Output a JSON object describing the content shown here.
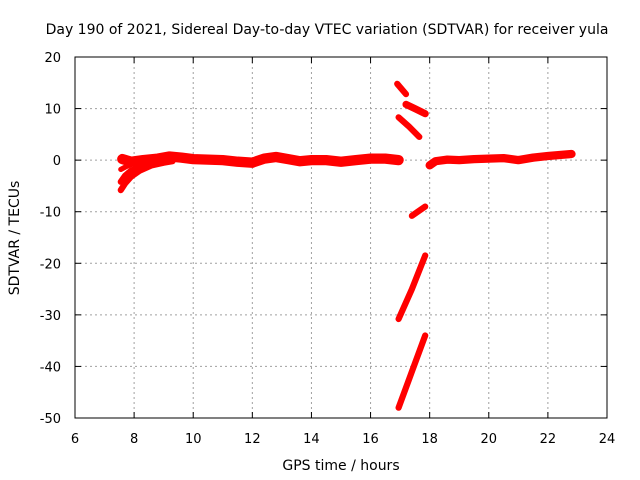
{
  "chart_data": {
    "type": "scatter",
    "title": "Day 190 of 2021, Sidereal Day-to-day VTEC variation (SDTVAR) for receiver yula",
    "xlabel": "GPS time / hours",
    "ylabel": "SDTVAR / TECUs",
    "xlim": [
      6,
      24
    ],
    "ylim": [
      -50,
      20
    ],
    "xticks": [
      6,
      8,
      10,
      12,
      14,
      16,
      18,
      20,
      22,
      24
    ],
    "yticks": [
      -50,
      -40,
      -30,
      -20,
      -10,
      0,
      10,
      20
    ],
    "grid": true,
    "legend": "none",
    "color": "#ff0000",
    "series": [
      {
        "name": "track-main-left",
        "thickness": 2.0,
        "points": [
          [
            7.6,
            0.2
          ],
          [
            7.9,
            -0.3
          ],
          [
            8.3,
            0.0
          ],
          [
            8.8,
            0.3
          ],
          [
            9.2,
            0.7
          ],
          [
            9.6,
            0.5
          ],
          [
            10.0,
            0.2
          ],
          [
            10.5,
            0.1
          ],
          [
            11.0,
            0.0
          ],
          [
            11.5,
            -0.3
          ],
          [
            12.0,
            -0.5
          ],
          [
            12.4,
            0.3
          ],
          [
            12.8,
            0.6
          ],
          [
            13.2,
            0.2
          ],
          [
            13.6,
            -0.2
          ],
          [
            14.0,
            0.0
          ],
          [
            14.5,
            0.0
          ],
          [
            15.0,
            -0.3
          ],
          [
            15.5,
            0.0
          ],
          [
            16.0,
            0.3
          ],
          [
            16.5,
            0.3
          ],
          [
            16.95,
            0.0
          ]
        ]
      },
      {
        "name": "track-decay-a",
        "thickness": 1.2,
        "points": [
          [
            7.55,
            -5.8
          ],
          [
            7.7,
            -4.5
          ],
          [
            7.9,
            -3.2
          ],
          [
            8.2,
            -2.0
          ],
          [
            8.6,
            -1.0
          ],
          [
            9.0,
            -0.5
          ],
          [
            9.3,
            -0.2
          ]
        ]
      },
      {
        "name": "track-decay-b",
        "thickness": 1.2,
        "points": [
          [
            7.55,
            -4.2
          ],
          [
            7.7,
            -3.0
          ],
          [
            7.9,
            -2.0
          ],
          [
            8.2,
            -1.3
          ],
          [
            8.6,
            -0.7
          ],
          [
            9.0,
            -0.3
          ]
        ]
      },
      {
        "name": "track-decay-c",
        "thickness": 1.0,
        "points": [
          [
            7.55,
            -1.8
          ],
          [
            7.75,
            -1.2
          ],
          [
            8.0,
            -0.6
          ],
          [
            8.3,
            -0.2
          ]
        ]
      },
      {
        "name": "track-main-right",
        "thickness": 1.6,
        "points": [
          [
            18.0,
            -1.0
          ],
          [
            18.2,
            -0.2
          ],
          [
            18.6,
            0.1
          ],
          [
            19.0,
            0.0
          ],
          [
            19.5,
            0.2
          ],
          [
            20.0,
            0.3
          ],
          [
            20.5,
            0.4
          ],
          [
            21.0,
            0.0
          ],
          [
            21.5,
            0.5
          ],
          [
            22.0,
            0.8
          ],
          [
            22.4,
            1.0
          ],
          [
            22.8,
            1.2
          ]
        ]
      },
      {
        "name": "track-steep-top",
        "thickness": 1.2,
        "points": [
          [
            16.9,
            14.8
          ],
          [
            17.2,
            12.8
          ]
        ]
      },
      {
        "name": "track-upper-right",
        "thickness": 1.4,
        "points": [
          [
            17.2,
            10.8
          ],
          [
            17.5,
            10.0
          ],
          [
            17.85,
            9.0
          ]
        ]
      },
      {
        "name": "track-upper-diag",
        "thickness": 1.2,
        "points": [
          [
            16.95,
            8.3
          ],
          [
            17.3,
            6.5
          ],
          [
            17.65,
            4.5
          ]
        ]
      },
      {
        "name": "track-neg10",
        "thickness": 1.2,
        "points": [
          [
            17.4,
            -10.8
          ],
          [
            17.6,
            -10.0
          ],
          [
            17.85,
            -9.0
          ]
        ]
      },
      {
        "name": "track-neg20-30",
        "thickness": 1.2,
        "points": [
          [
            16.95,
            -30.8
          ],
          [
            17.4,
            -25.0
          ],
          [
            17.85,
            -18.5
          ]
        ]
      },
      {
        "name": "track-neg35-48",
        "thickness": 1.2,
        "points": [
          [
            16.95,
            -48.0
          ],
          [
            17.4,
            -41.0
          ],
          [
            17.85,
            -34.0
          ]
        ]
      }
    ]
  }
}
